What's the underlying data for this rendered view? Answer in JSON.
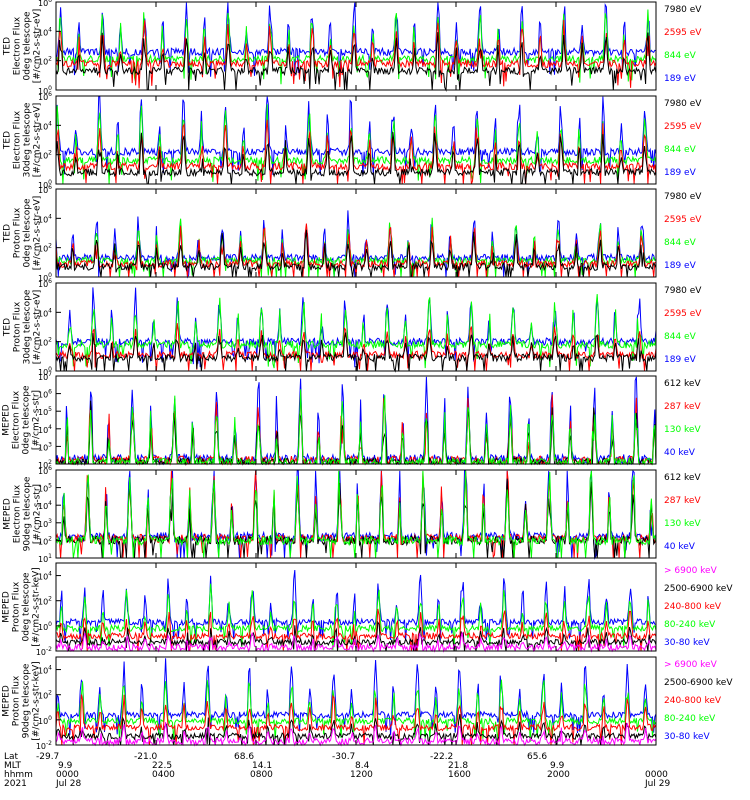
{
  "colors": {
    "blue": "#0000ff",
    "red": "#ff0000",
    "green": "#00ff00",
    "black": "#000000",
    "magenta": "#ff00ff"
  },
  "chart_data": [
    {
      "type": "line",
      "ylabel_lines": [
        "TED",
        "Electron Flux",
        "0deg telescope",
        "[#/cm2-s-str-eV]"
      ],
      "yticks": [
        "10^0",
        "10^2",
        "10^4",
        "10^6"
      ],
      "ylim_exp": [
        0,
        6
      ],
      "scale": "log",
      "grid": false,
      "series": [
        {
          "name": "7980 eV",
          "color": "#000000",
          "base": 1.3,
          "ev": 2.2
        },
        {
          "name": "2595 eV",
          "color": "#ff0000",
          "base": 1.8,
          "ev": 2.6
        },
        {
          "name": "844 eV",
          "color": "#00ff00",
          "base": 2.1,
          "ev": 3.0
        },
        {
          "name": "189 eV",
          "color": "#0000ff",
          "base": 2.6,
          "ev": 3.3
        }
      ]
    },
    {
      "type": "line",
      "ylabel_lines": [
        "TED",
        "Electron Flux",
        "30deg telescope",
        "[#/cm2-s-str-eV]"
      ],
      "yticks": [
        "10^0",
        "10^2",
        "10^4",
        "10^6"
      ],
      "ylim_exp": [
        0,
        6
      ],
      "scale": "log",
      "grid": false,
      "series": [
        {
          "name": "7980 eV",
          "color": "#000000",
          "base": 0.8,
          "ev": 2.4
        },
        {
          "name": "2595 eV",
          "color": "#ff0000",
          "base": 1.2,
          "ev": 2.8
        },
        {
          "name": "844 eV",
          "color": "#00ff00",
          "base": 1.6,
          "ev": 3.1
        },
        {
          "name": "189 eV",
          "color": "#0000ff",
          "base": 2.2,
          "ev": 3.5
        }
      ]
    },
    {
      "type": "line",
      "ylabel_lines": [
        "TED",
        "Proton Flux",
        "0deg telescope",
        "[#/cm2-s-str-eV]"
      ],
      "yticks": [
        "10^0",
        "10^2",
        "10^4",
        "10^6"
      ],
      "ylim_exp": [
        0,
        6
      ],
      "scale": "log",
      "grid": false,
      "series": [
        {
          "name": "7980 eV",
          "color": "#000000",
          "base": 0.7,
          "ev": 2.0
        },
        {
          "name": "2595 eV",
          "color": "#ff0000",
          "base": 0.9,
          "ev": 2.3
        },
        {
          "name": "844 eV",
          "color": "#00ff00",
          "base": 1.1,
          "ev": 2.5
        },
        {
          "name": "189 eV",
          "color": "#0000ff",
          "base": 1.3,
          "ev": 2.8
        }
      ]
    },
    {
      "type": "line",
      "ylabel_lines": [
        "TED",
        "Proton Flux",
        "30deg telescope",
        "[#/cm2-s-str-eV]"
      ],
      "yticks": [
        "10^0",
        "10^2",
        "10^4",
        "10^6"
      ],
      "ylim_exp": [
        0,
        6
      ],
      "scale": "log",
      "grid": false,
      "series": [
        {
          "name": "7980 eV",
          "color": "#000000",
          "base": 0.9,
          "ev": 1.6
        },
        {
          "name": "2595 eV",
          "color": "#ff0000",
          "base": 1.1,
          "ev": 1.8
        },
        {
          "name": "844 eV",
          "color": "#00ff00",
          "base": 1.8,
          "ev": 3.0
        },
        {
          "name": "189 eV",
          "color": "#0000ff",
          "base": 2.0,
          "ev": 3.2
        }
      ]
    },
    {
      "type": "line",
      "ylabel_lines": [
        "MEPED",
        "Electron Flux",
        "0deg telescope",
        "[#/cm2-s-str]"
      ],
      "yticks": [
        "10^2",
        "10^3",
        "10^4",
        "10^5",
        "10^6",
        "10^7"
      ],
      "ylim_exp": [
        2,
        7
      ],
      "scale": "log",
      "grid": false,
      "series": [
        {
          "name": "612 keV",
          "color": "#000000",
          "base": 2.1,
          "ev": 2.9
        },
        {
          "name": "287 keV",
          "color": "#ff0000",
          "base": 2.2,
          "ev": 3.3
        },
        {
          "name": "130 keV",
          "color": "#00ff00",
          "base": 2.1,
          "ev": 3.4
        },
        {
          "name": "40 keV",
          "color": "#0000ff",
          "base": 2.3,
          "ev": 4.6
        }
      ]
    },
    {
      "type": "line",
      "ylabel_lines": [
        "MEPED",
        "Electron Flux",
        "90deg telescope",
        "[#/cm2-s-str]"
      ],
      "yticks": [
        "10^1",
        "10^2",
        "10^3",
        "10^4",
        "10^5",
        "10^6"
      ],
      "ylim_exp": [
        1,
        6
      ],
      "scale": "log",
      "grid": false,
      "series": [
        {
          "name": "612 keV",
          "color": "#000000",
          "base": 2.0,
          "ev": 3.0
        },
        {
          "name": "287 keV",
          "color": "#ff0000",
          "base": 2.1,
          "ev": 3.6
        },
        {
          "name": "130 keV",
          "color": "#00ff00",
          "base": 2.0,
          "ev": 3.9
        },
        {
          "name": "40 keV",
          "color": "#0000ff",
          "base": 2.2,
          "ev": 4.5
        }
      ]
    },
    {
      "type": "line",
      "ylabel_lines": [
        "MEPED",
        "Proton Flux",
        "0deg telescope",
        "[#/cm2-s-str-keV]"
      ],
      "yticks": [
        "10^-2",
        "10^0",
        "10^2",
        "10^4"
      ],
      "ylim_exp": [
        -2,
        5
      ],
      "scale": "log",
      "grid": false,
      "series": [
        {
          "name": "> 6900 keV",
          "color": "#ff00ff",
          "base": -1.7,
          "ev": 1.0
        },
        {
          "name": "2500-6900 keV",
          "color": "#000000",
          "base": -1.3,
          "ev": 1.2
        },
        {
          "name": "240-800 keV",
          "color": "#ff0000",
          "base": -0.8,
          "ev": 1.8
        },
        {
          "name": "80-240 keV",
          "color": "#00ff00",
          "base": -0.2,
          "ev": 2.9
        },
        {
          "name": "30-80 keV",
          "color": "#0000ff",
          "base": 0.3,
          "ev": 3.6
        }
      ]
    },
    {
      "type": "line",
      "ylabel_lines": [
        "MEPED",
        "Proton Flux",
        "90deg telescope",
        "[#/cm2-s-str-keV]"
      ],
      "yticks": [
        "10^-2",
        "10^0",
        "10^2",
        "10^4"
      ],
      "ylim_exp": [
        -2,
        5
      ],
      "scale": "log",
      "grid": false,
      "series": [
        {
          "name": "> 6900 keV",
          "color": "#ff00ff",
          "base": -1.7,
          "ev": 1.2
        },
        {
          "name": "2500-6900 keV",
          "color": "#000000",
          "base": -1.3,
          "ev": 1.4
        },
        {
          "name": "240-800 keV",
          "color": "#ff0000",
          "base": -0.6,
          "ev": 2.2
        },
        {
          "name": "80-240 keV",
          "color": "#00ff00",
          "base": -0.1,
          "ev": 3.1
        },
        {
          "name": "30-80 keV",
          "color": "#0000ff",
          "base": 0.4,
          "ev": 3.7
        }
      ]
    }
  ],
  "x_axis": {
    "row_labels": [
      "Lat",
      "MLT",
      "hhmm",
      "2021"
    ],
    "ticks": [
      {
        "lat": "-29.7",
        "mlt": "9.9",
        "hhmm": "0000",
        "date": "Jul 28"
      },
      {
        "lat": "-21.0",
        "mlt": "22.5",
        "hhmm": "0400",
        "date": ""
      },
      {
        "lat": "68.6",
        "mlt": "14.1",
        "hhmm": "0800",
        "date": ""
      },
      {
        "lat": "-30.7",
        "mlt": "8.4",
        "hhmm": "1200",
        "date": ""
      },
      {
        "lat": "-22.2",
        "mlt": "21.8",
        "hhmm": "1600",
        "date": ""
      },
      {
        "lat": "65.6",
        "mlt": "9.9",
        "hhmm": "2000",
        "date": ""
      },
      {
        "lat": "",
        "mlt": "",
        "hhmm": "0000",
        "date": "Jul 29"
      }
    ]
  }
}
